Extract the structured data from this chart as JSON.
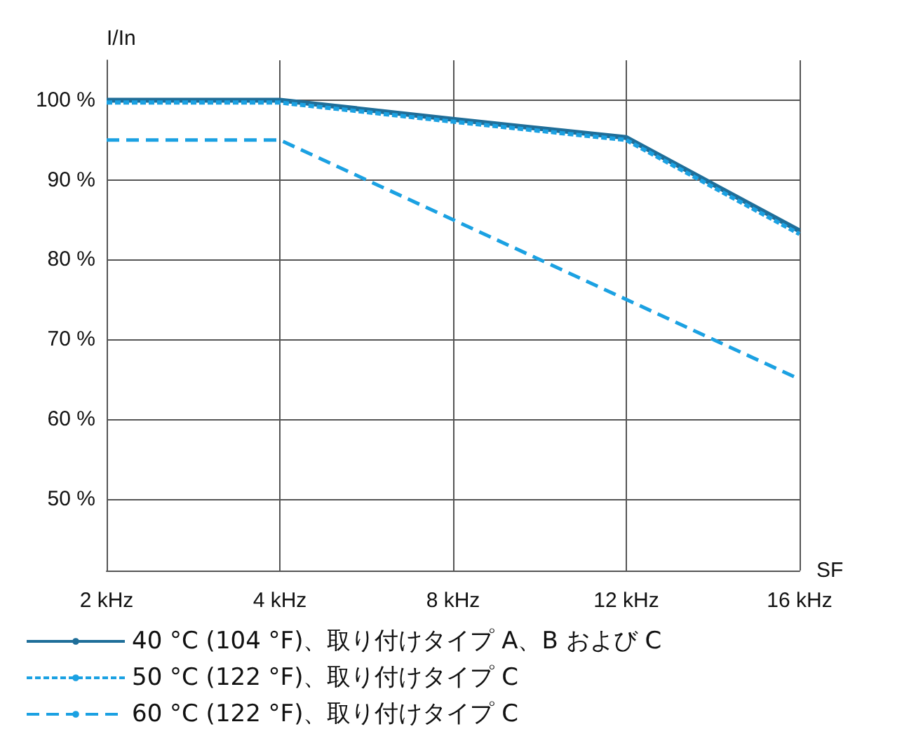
{
  "chart_data": {
    "type": "line",
    "xlabel": "SF",
    "ylabel": "I/In",
    "categories": [
      "2 kHz",
      "4 kHz",
      "8 kHz",
      "12 kHz",
      "16 kHz"
    ],
    "series": [
      {
        "name": "40 °C (104 °F)、取り付けタイプ A、B および C",
        "color": "#1f6e99",
        "line_style": "solid",
        "values": [
          100,
          100,
          97.6,
          95.3,
          83.6
        ]
      },
      {
        "name": "50 °C (122 °F)、取り付けタイプ C",
        "color": "#1ba1e2",
        "line_style": "dotted",
        "values": [
          99.7,
          99.7,
          97.3,
          95,
          83.2
        ]
      },
      {
        "name": "60 °C (122 °F)、取り付けタイプ C",
        "color": "#1ba1e2",
        "line_style": "dashed",
        "values": [
          95,
          95,
          85,
          75,
          65
        ]
      }
    ],
    "ylim": [
      41,
      105
    ],
    "yticks": [
      {
        "value": 50,
        "label": "50 %"
      },
      {
        "value": 60,
        "label": "60 %"
      },
      {
        "value": 70,
        "label": "70 %"
      },
      {
        "value": 80,
        "label": "80 %"
      },
      {
        "value": 90,
        "label": "90 %"
      },
      {
        "value": 100,
        "label": "100 %"
      }
    ],
    "grid": true,
    "legend": "bottom",
    "marker": "none"
  }
}
